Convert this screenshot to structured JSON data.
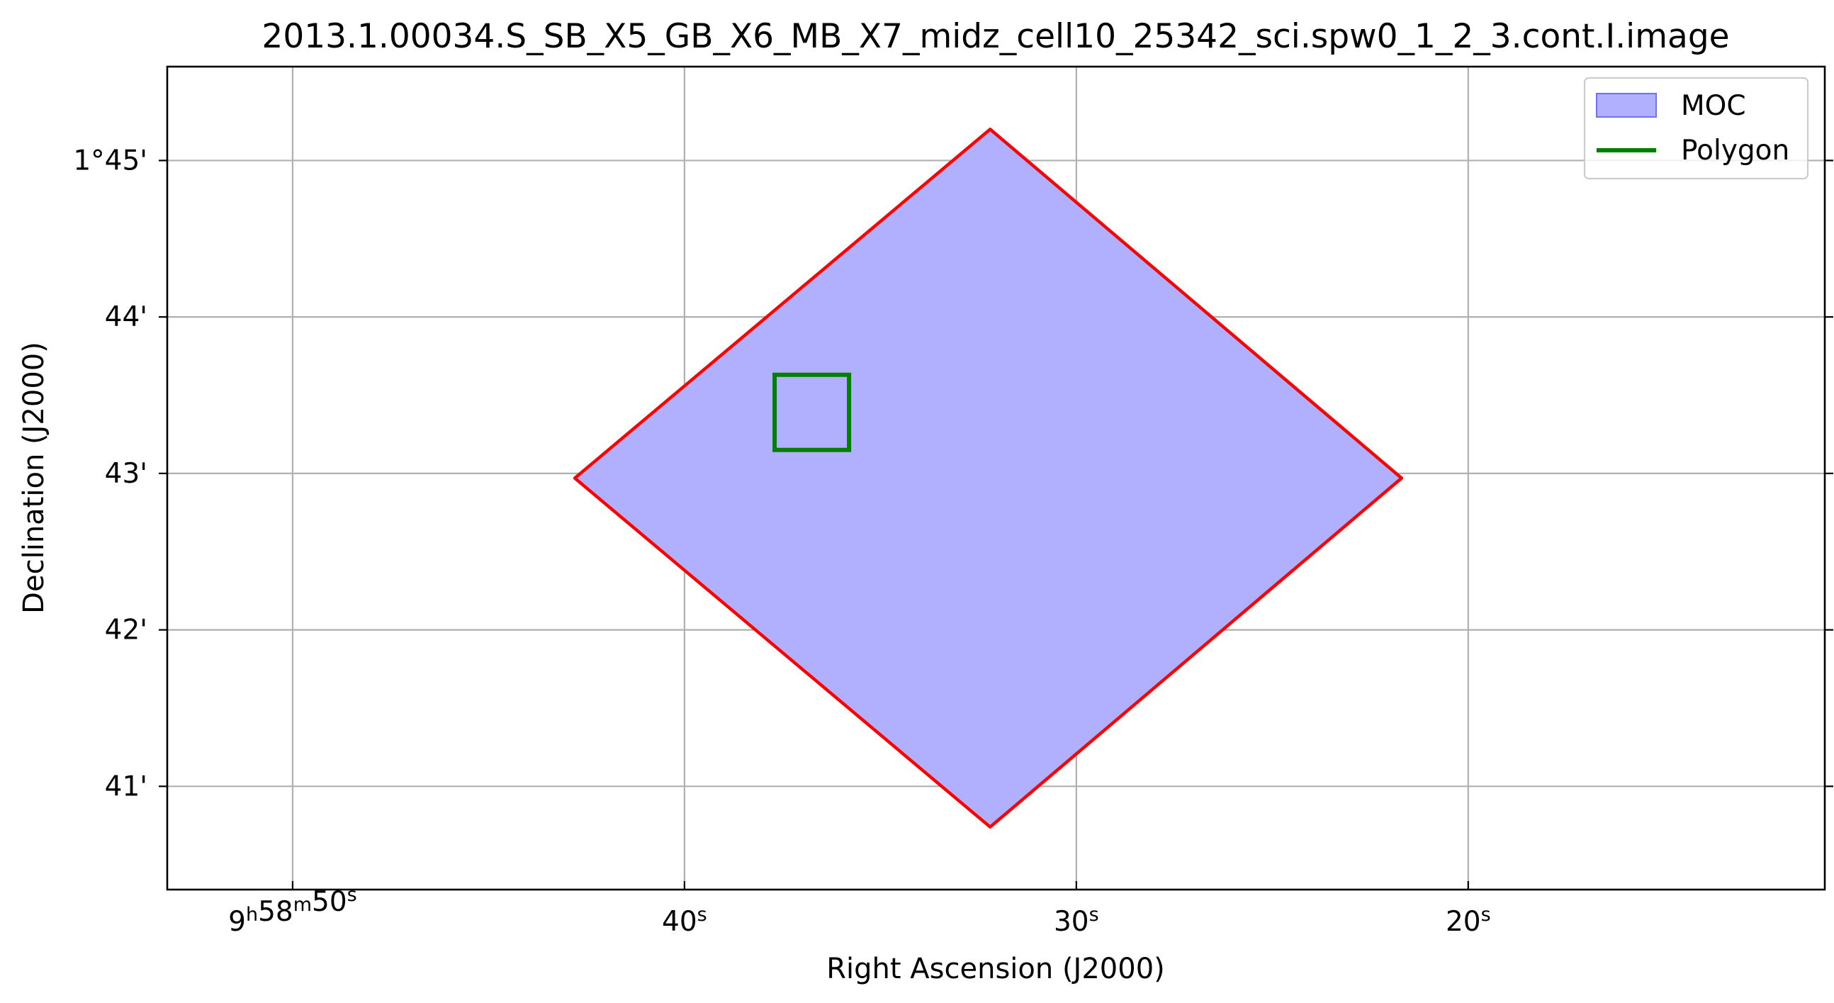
{
  "chart_data": {
    "type": "area",
    "title": "2013.1.00034.S_SB_X5_GB_X6_MB_X7_midz_cell10_25342_sci.spw0_1_2_3.cont.I.image",
    "xlabel": "Right Ascension (J2000)",
    "ylabel": "Declination (J2000)",
    "x_unit": "seconds of RA past 9h58m",
    "y_unit": "arcminutes of Dec past 1°",
    "xlim": [
      53.2,
      10.9
    ],
    "ylim": [
      40.34,
      45.6
    ],
    "grid": true,
    "legend_position": "top-right",
    "x_ticks": [
      {
        "value": 50,
        "label": {
          "main": "9",
          "sup1": "h",
          "mid": "58",
          "sup2": "m",
          "end": "50",
          "sup3": "s"
        }
      },
      {
        "value": 40,
        "label": {
          "main": "",
          "sup1": "",
          "mid": "",
          "sup2": "",
          "end": "40",
          "sup3": "s"
        }
      },
      {
        "value": 30,
        "label": {
          "main": "",
          "sup1": "",
          "mid": "",
          "sup2": "",
          "end": "30",
          "sup3": "s"
        }
      },
      {
        "value": 20,
        "label": {
          "main": "",
          "sup1": "",
          "mid": "",
          "sup2": "",
          "end": "20",
          "sup3": "s"
        }
      }
    ],
    "y_ticks": [
      {
        "value": 45,
        "label": "1°45'"
      },
      {
        "value": 44,
        "label": "44'"
      },
      {
        "value": 43,
        "label": "43'"
      },
      {
        "value": 42,
        "label": "42'"
      },
      {
        "value": 41,
        "label": "41'"
      }
    ],
    "series": [
      {
        "name": "MOC",
        "kind": "filled-region",
        "fill_color": "#b0b0fe",
        "edge_color": "#ff0000",
        "points": [
          {
            "x": 32.2,
            "y": 45.2
          },
          {
            "x": 21.7,
            "y": 42.97
          },
          {
            "x": 32.2,
            "y": 40.74
          },
          {
            "x": 42.8,
            "y": 42.97
          }
        ]
      },
      {
        "name": "Polygon",
        "kind": "outline",
        "line_color": "#008000",
        "points": [
          {
            "x": 37.7,
            "y": 43.63
          },
          {
            "x": 35.8,
            "y": 43.63
          },
          {
            "x": 35.8,
            "y": 43.15
          },
          {
            "x": 37.7,
            "y": 43.15
          }
        ]
      }
    ]
  },
  "colors": {
    "grid": "#b0b0b0",
    "axes": "#000000",
    "legend_border": "#cccccc"
  }
}
